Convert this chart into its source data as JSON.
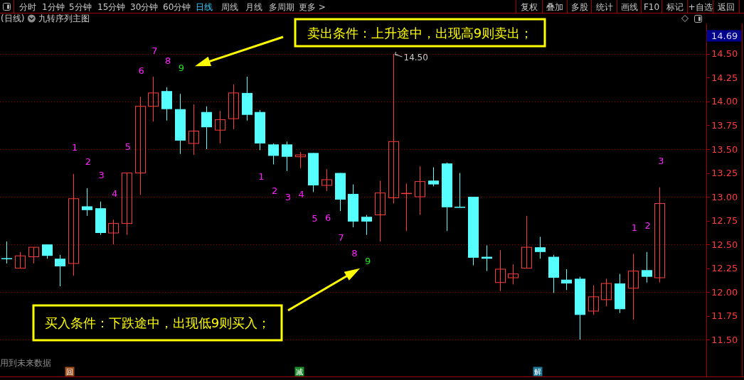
{
  "chart_data": {
    "type": "candlestick",
    "title": "(日线)",
    "subtitle": "九转序列主图",
    "categories": [
      null,
      null,
      null,
      null,
      null,
      null,
      null,
      null,
      null,
      null,
      null,
      null,
      null,
      null,
      null,
      null,
      null,
      null,
      null,
      null,
      null,
      null,
      null,
      null,
      null,
      null,
      null,
      null,
      null,
      null,
      null,
      null,
      null,
      null,
      null,
      null,
      null,
      null,
      null,
      null,
      null,
      null,
      null,
      null,
      null,
      null,
      null,
      null,
      null,
      null,
      null,
      null,
      null
    ],
    "ohlc": [
      [
        12.35,
        12.53,
        12.3,
        12.35
      ],
      [
        12.25,
        12.42,
        12.25,
        12.38
      ],
      [
        12.37,
        12.47,
        12.3,
        12.47
      ],
      [
        12.5,
        12.5,
        12.35,
        12.38
      ],
      [
        12.35,
        12.39,
        12.06,
        12.27
      ],
      [
        12.3,
        13.24,
        12.17,
        12.98
      ],
      [
        12.9,
        13.09,
        12.8,
        12.86
      ],
      [
        12.88,
        12.95,
        12.6,
        12.62
      ],
      [
        12.62,
        12.76,
        12.5,
        12.72
      ],
      [
        12.72,
        13.25,
        12.6,
        13.25
      ],
      [
        13.25,
        14.05,
        13.02,
        13.95
      ],
      [
        13.95,
        14.26,
        13.79,
        14.09
      ],
      [
        14.11,
        14.15,
        13.8,
        13.92
      ],
      [
        13.92,
        14.08,
        13.45,
        13.59
      ],
      [
        13.56,
        13.97,
        13.44,
        13.69
      ],
      [
        13.89,
        13.95,
        13.5,
        13.73
      ],
      [
        13.7,
        13.9,
        13.56,
        13.81
      ],
      [
        13.82,
        14.18,
        13.71,
        14.09
      ],
      [
        14.09,
        14.26,
        13.8,
        13.86
      ],
      [
        13.89,
        13.91,
        13.49,
        13.56
      ],
      [
        13.55,
        13.56,
        13.34,
        13.43
      ],
      [
        13.55,
        13.58,
        13.27,
        13.42
      ],
      [
        13.42,
        13.47,
        13.3,
        13.44
      ],
      [
        13.46,
        13.46,
        13.05,
        13.12
      ],
      [
        13.12,
        13.29,
        13.06,
        13.18
      ],
      [
        13.25,
        13.25,
        12.85,
        12.97
      ],
      [
        13.03,
        13.13,
        12.68,
        12.74
      ],
      [
        12.79,
        12.81,
        12.6,
        12.74
      ],
      [
        12.81,
        13.17,
        12.53,
        13.04
      ],
      [
        12.99,
        14.5,
        12.93,
        13.58
      ],
      [
        13.03,
        13.14,
        12.64,
        13.04
      ],
      [
        13.0,
        13.32,
        12.81,
        13.16
      ],
      [
        13.17,
        13.31,
        13.11,
        13.13
      ],
      [
        13.35,
        13.36,
        12.64,
        12.89
      ],
      [
        12.89,
        13.25,
        12.89,
        12.89
      ],
      [
        13.0,
        13.0,
        12.28,
        12.36
      ],
      [
        12.37,
        12.49,
        12.22,
        12.35
      ],
      [
        12.1,
        12.44,
        12.01,
        12.24
      ],
      [
        12.15,
        12.29,
        12.08,
        12.19
      ],
      [
        12.25,
        12.8,
        12.25,
        12.47
      ],
      [
        12.47,
        12.58,
        12.35,
        12.42
      ],
      [
        12.37,
        12.39,
        11.99,
        12.15
      ],
      [
        12.13,
        12.24,
        12.02,
        12.09
      ],
      [
        12.14,
        12.16,
        11.5,
        11.76
      ],
      [
        11.8,
        12.07,
        11.76,
        11.95
      ],
      [
        11.92,
        12.14,
        11.85,
        12.09
      ],
      [
        12.09,
        12.19,
        11.78,
        11.82
      ],
      [
        12.04,
        12.4,
        11.71,
        12.22
      ],
      [
        12.23,
        12.42,
        12.1,
        12.16
      ],
      [
        12.15,
        13.1,
        12.1,
        12.93
      ],
      null,
      null,
      null
    ],
    "colors": [
      "#55ffff",
      "#ff3c3c",
      "#ff3c3c",
      "#55ffff",
      "#55ffff",
      "#ff3c3c",
      "#55ffff",
      "#55ffff",
      "#ff3c3c",
      "#ff3c3c",
      "#ff3c3c",
      "#ff3c3c",
      "#55ffff",
      "#55ffff",
      "#ff3c3c",
      "#55ffff",
      "#ff3c3c",
      "#ff3c3c",
      "#55ffff",
      "#55ffff",
      "#55ffff",
      "#55ffff",
      "#ff3c3c",
      "#55ffff",
      "#ff3c3c",
      "#55ffff",
      "#55ffff",
      "#55ffff",
      "#ff3c3c",
      "#ff3c3c",
      "#ff3c3c",
      "#ff3c3c",
      "#55ffff",
      "#55ffff",
      "#55ffff",
      "#55ffff",
      "#55ffff",
      "#ff3c3c",
      "#ff3c3c",
      "#ff3c3c",
      "#55ffff",
      "#55ffff",
      "#55ffff",
      "#55ffff",
      "#ff3c3c",
      "#ff3c3c",
      "#55ffff",
      "#ff3c3c",
      "#55ffff",
      "#ff3c3c",
      null,
      null,
      null
    ],
    "value_labels": [
      null,
      null,
      null,
      null,
      null,
      "1",
      "2",
      "3",
      "4",
      "5",
      "6",
      "7",
      "8",
      "9",
      null,
      null,
      null,
      null,
      null,
      "1",
      "2",
      "3",
      "4",
      "5",
      "6",
      "7",
      "8",
      "9",
      null,
      null,
      null,
      null,
      null,
      null,
      null,
      null,
      null,
      null,
      null,
      null,
      null,
      null,
      null,
      null,
      null,
      null,
      null,
      "1",
      "2",
      "3",
      null,
      null,
      null
    ],
    "ylim": [
      11.11,
      14.82
    ],
    "yticks": [
      {
        "value": 11.5,
        "label": "11.50"
      },
      {
        "value": 11.75,
        "label": "11.75"
      },
      {
        "value": 12,
        "label": "12.00"
      },
      {
        "value": 12.25,
        "label": "12.25"
      },
      {
        "value": 12.5,
        "label": "12.50"
      },
      {
        "value": 12.75,
        "label": "12.75"
      },
      {
        "value": 13,
        "label": "13.00"
      },
      {
        "value": 13.25,
        "label": "13.25"
      },
      {
        "value": 13.5,
        "label": "13.50"
      },
      {
        "value": 13.75,
        "label": "13.75"
      },
      {
        "value": 14,
        "label": "14.00"
      },
      {
        "value": 14.25,
        "label": "14.25"
      },
      {
        "value": 14.5,
        "label": "14.50"
      },
      {
        "value": 14.69,
        "label": "14.69"
      }
    ],
    "grid": "y",
    "annotations": [
      "卖出条件：上升途中，出现高9则卖出；",
      "买入条件：下跌途中，出现低9则买入；",
      "14.50",
      "用到未来数据",
      "分时",
      "1分钟",
      "5分钟",
      "15分钟",
      "30分钟",
      "60分钟",
      "日线",
      "周线",
      "月线",
      "多周期",
      "更多 >",
      "复权",
      "叠加",
      "多股",
      "统计",
      "画线",
      "F10",
      "标记",
      "+自选",
      "返回",
      "回",
      "减",
      "解"
    ]
  }
}
